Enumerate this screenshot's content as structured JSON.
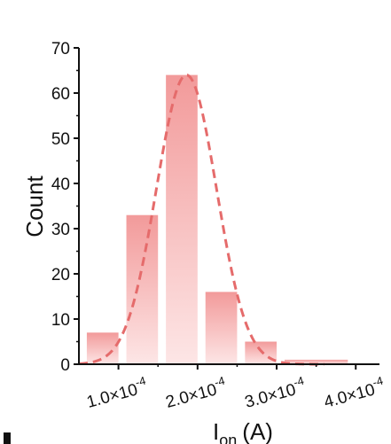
{
  "chart_data": {
    "type": "bar",
    "title": "",
    "ylabel": "Count",
    "xlabel": {
      "base": "I",
      "subscript": "on",
      "unit": "(A)"
    },
    "ylim": [
      0,
      70
    ],
    "yticks": [
      0,
      10,
      20,
      30,
      40,
      50,
      60,
      70
    ],
    "xlim": [
      5e-05,
      0.00043
    ],
    "xticks": [
      {
        "value": 0.0001,
        "mantissa": "1.0×10",
        "exponent": "-4"
      },
      {
        "value": 0.0002,
        "mantissa": "2.0×10",
        "exponent": "-4"
      },
      {
        "value": 0.0003,
        "mantissa": "3.0×10",
        "exponent": "-4"
      },
      {
        "value": 0.0004,
        "mantissa": "4.0×10",
        "exponent": "-4"
      }
    ],
    "bins": [
      {
        "x0": 6e-05,
        "x1": 0.0001,
        "value": 7
      },
      {
        "x0": 0.00011,
        "x1": 0.00015,
        "value": 33
      },
      {
        "x0": 0.00016,
        "x1": 0.0002,
        "value": 64
      },
      {
        "x0": 0.00021,
        "x1": 0.00025,
        "value": 16
      },
      {
        "x0": 0.00026,
        "x1": 0.0003,
        "value": 5
      },
      {
        "x0": 0.00031,
        "x1": 0.00039,
        "value": 1
      }
    ],
    "fit_curve": {
      "type": "gaussian",
      "center": 0.000186,
      "sigma": 3.8e-05,
      "amplitude": 64,
      "style": "dashed",
      "color": "#e56b6b"
    },
    "bar_color_top": "#f29a9a",
    "bar_color_bottom": "#fde6e6",
    "grid": false,
    "legend": "none"
  }
}
